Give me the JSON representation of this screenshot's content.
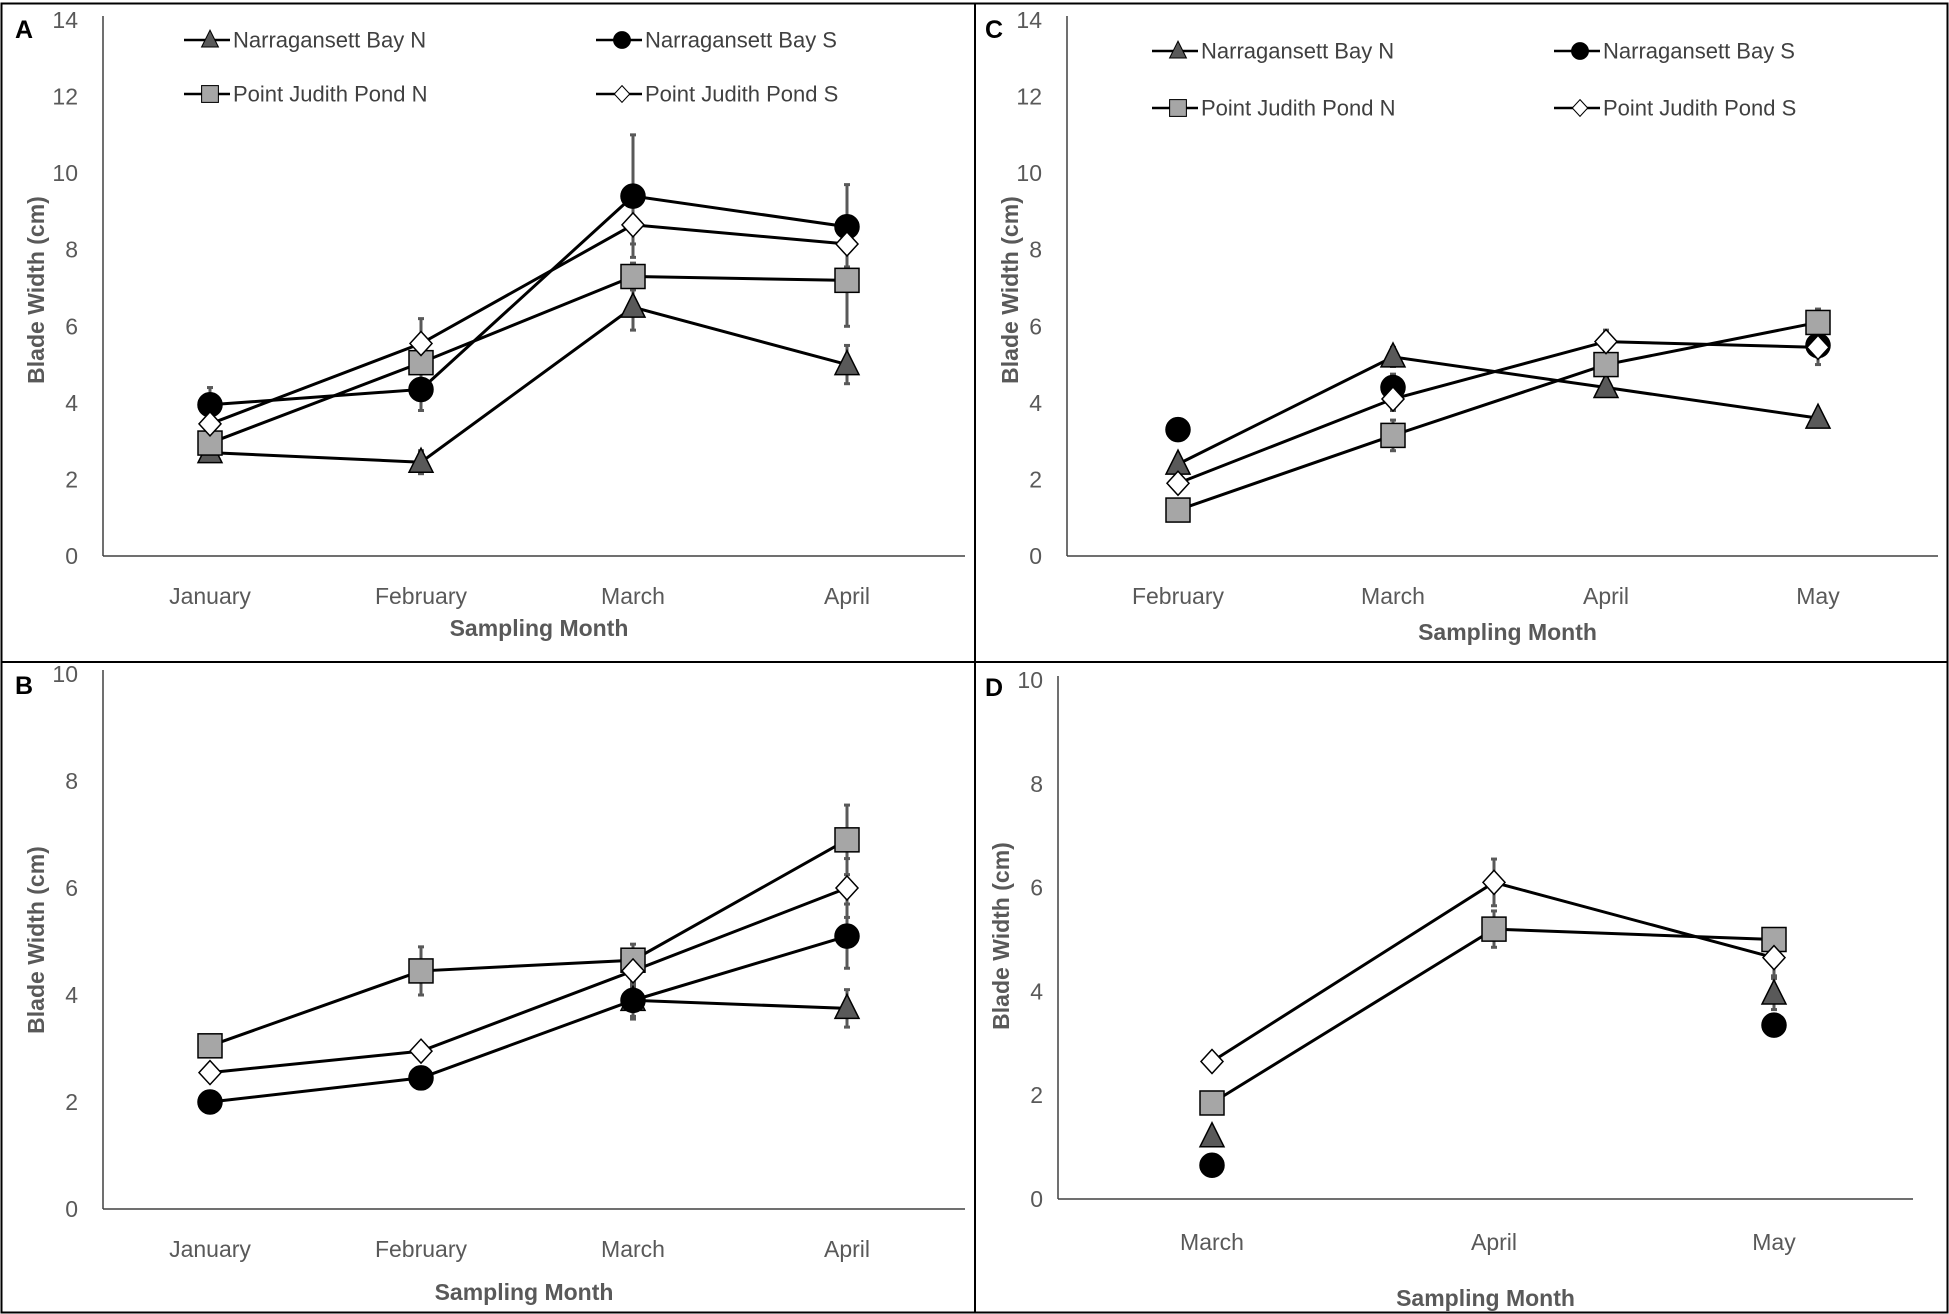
{
  "colors": {
    "Narragansett Bay N": "#595959",
    "Narragansett Bay S": "#000000",
    "Point Judith Pond N": "#a6a6a6",
    "Point Judith Pond S": "#ffffff",
    "line": "#000000",
    "errorbar": "#595959"
  },
  "chart_data": [
    {
      "id": "A",
      "type": "line",
      "xlabel": "Sampling Month",
      "ylabel": "Blade Width (cm)",
      "ylim": [
        0,
        14
      ],
      "yticks": [
        0,
        2,
        4,
        6,
        8,
        10,
        12,
        14
      ],
      "categories": [
        "January",
        "February",
        "March",
        "April"
      ],
      "legend": [
        "Narragansett Bay N",
        "Narragansett Bay S",
        "Point Judith Pond N",
        "Point Judith Pond S"
      ],
      "series": [
        {
          "name": "Narragansett Bay N",
          "marker": "triangle",
          "values": [
            2.7,
            2.45,
            6.5,
            5.0
          ],
          "errors": [
            0.15,
            0.3,
            0.6,
            0.5
          ]
        },
        {
          "name": "Narragansett Bay S",
          "marker": "circle",
          "values": [
            3.95,
            4.35,
            9.4,
            8.6
          ],
          "errors": [
            0.45,
            0.55,
            1.6,
            1.1
          ]
        },
        {
          "name": "Point Judith Pond N",
          "marker": "square",
          "values": [
            2.95,
            5.05,
            7.3,
            7.2
          ],
          "errors": [
            0.2,
            0.45,
            0.35,
            1.2
          ]
        },
        {
          "name": "Point Judith Pond S",
          "marker": "diamond",
          "values": [
            3.45,
            5.55,
            8.65,
            8.15
          ],
          "errors": [
            0.2,
            0.65,
            0.5,
            0.6
          ]
        }
      ]
    },
    {
      "id": "C",
      "type": "line",
      "xlabel": "Sampling Month",
      "ylabel": "Blade Width (cm)",
      "ylim": [
        0,
        14
      ],
      "yticks": [
        0,
        2,
        4,
        6,
        8,
        10,
        12,
        14
      ],
      "categories": [
        "February",
        "March",
        "April",
        "May"
      ],
      "legend": [
        "Narragansett Bay N",
        "Narragansett Bay S",
        "Point Judith Pond N",
        "Point Judith Pond S"
      ],
      "series": [
        {
          "name": "Narragansett Bay N",
          "marker": "triangle",
          "values": [
            2.4,
            5.2,
            4.4,
            3.6
          ],
          "errors": [
            0.2,
            0.25,
            0.2,
            0.15
          ]
        },
        {
          "name": "Narragansett Bay S",
          "marker": "circle",
          "values": [
            3.3,
            4.4,
            null,
            5.5
          ],
          "errors": [
            0.15,
            0.35,
            0,
            0.5
          ],
          "connect": false
        },
        {
          "name": "Point Judith Pond N",
          "marker": "square",
          "values": [
            1.2,
            3.15,
            5.0,
            6.1
          ],
          "errors": [
            0.1,
            0.4,
            0.3,
            0.35
          ]
        },
        {
          "name": "Point Judith Pond S",
          "marker": "diamond",
          "values": [
            1.9,
            4.1,
            5.6,
            5.45
          ],
          "errors": [
            0.1,
            0.3,
            0.3,
            0.25
          ]
        }
      ]
    },
    {
      "id": "B",
      "type": "line",
      "xlabel": "Sampling Month",
      "ylabel": "Blade Width (cm)",
      "ylim": [
        0,
        10
      ],
      "yticks": [
        0,
        2,
        4,
        6,
        8,
        10
      ],
      "categories": [
        "January",
        "February",
        "March",
        "April"
      ],
      "legend": [],
      "series": [
        {
          "name": "Narragansett Bay N",
          "marker": "triangle",
          "values": [
            null,
            null,
            3.9,
            3.75
          ],
          "errors": [
            0,
            0,
            0.35,
            0.35
          ]
        },
        {
          "name": "Narragansett Bay S",
          "marker": "circle",
          "values": [
            2.0,
            2.45,
            3.9,
            5.1
          ],
          "errors": [
            0,
            0.1,
            0.3,
            0.6
          ]
        },
        {
          "name": "Point Judith Pond N",
          "marker": "square",
          "values": [
            3.05,
            4.45,
            4.65,
            6.9
          ],
          "errors": [
            0.1,
            0.45,
            0.3,
            0.65
          ]
        },
        {
          "name": "Point Judith Pond S",
          "marker": "diamond",
          "values": [
            2.55,
            2.95,
            4.45,
            6.0
          ],
          "errors": [
            0.1,
            0.15,
            0.3,
            0.55
          ]
        }
      ]
    },
    {
      "id": "D",
      "type": "line",
      "xlabel": "Sampling Month",
      "ylabel": "Blade Width (cm)",
      "ylim": [
        0,
        10
      ],
      "yticks": [
        0,
        2,
        4,
        6,
        8,
        10
      ],
      "categories": [
        "March",
        "April",
        "May"
      ],
      "legend": [],
      "series": [
        {
          "name": "Narragansett Bay N",
          "marker": "triangle",
          "values": [
            1.2,
            null,
            3.95
          ],
          "errors": [
            0.1,
            0,
            0.3
          ],
          "connect": false
        },
        {
          "name": "Narragansett Bay S",
          "marker": "circle",
          "values": [
            0.65,
            null,
            3.35
          ],
          "errors": [
            0.05,
            0,
            0.15
          ],
          "connect": false
        },
        {
          "name": "Point Judith Pond N",
          "marker": "square",
          "values": [
            1.85,
            5.2,
            5.0
          ],
          "errors": [
            0.1,
            0.35,
            0.15
          ]
        },
        {
          "name": "Point Judith Pond S",
          "marker": "diamond",
          "values": [
            2.65,
            6.1,
            4.65
          ],
          "errors": [
            0.05,
            0.45,
            0.35
          ]
        }
      ]
    }
  ]
}
